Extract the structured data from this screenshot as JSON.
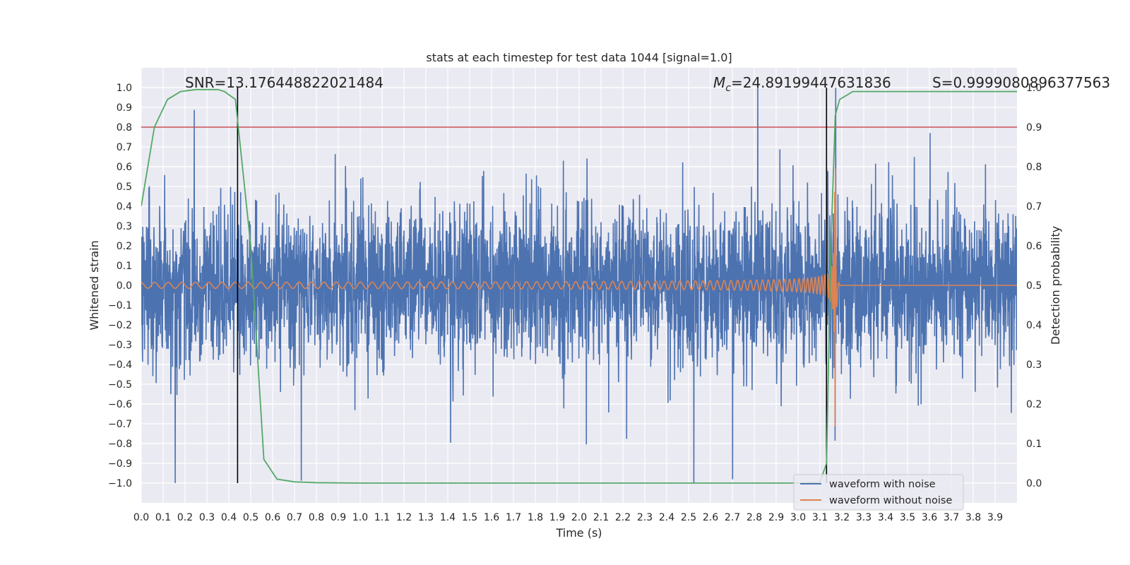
{
  "chart_data": {
    "type": "line",
    "title": "stats at each timestep for test data 1044 [signal=1.0]",
    "xlabel": "Time (s)",
    "ylabel": "Whitened strain",
    "y2label": "Detection probability",
    "xlim": [
      0.0,
      4.0
    ],
    "ylim": [
      -1.1,
      1.1
    ],
    "y2lim": [
      -0.05,
      1.05
    ],
    "x_ticks": [
      "0.0",
      "0.1",
      "0.2",
      "0.3",
      "0.4",
      "0.5",
      "0.6",
      "0.7",
      "0.8",
      "0.9",
      "1.0",
      "1.1",
      "1.2",
      "1.3",
      "1.4",
      "1.5",
      "1.6",
      "1.7",
      "1.8",
      "1.9",
      "2.0",
      "2.1",
      "2.2",
      "2.3",
      "2.4",
      "2.5",
      "2.6",
      "2.7",
      "2.8",
      "2.9",
      "3.0",
      "3.1",
      "3.2",
      "3.3",
      "3.4",
      "3.5",
      "3.6",
      "3.7",
      "3.8",
      "3.9"
    ],
    "y_ticks": [
      "1.0",
      "0.9",
      "0.8",
      "0.7",
      "0.6",
      "0.5",
      "0.4",
      "0.3",
      "0.2",
      "0.1",
      "0.0",
      "−0.1",
      "−0.2",
      "−0.3",
      "−0.4",
      "−0.5",
      "−0.6",
      "−0.7",
      "−0.8",
      "−0.9",
      "−1.0"
    ],
    "y2_ticks": [
      "1.0",
      "0.9",
      "0.8",
      "0.7",
      "0.6",
      "0.5",
      "0.4",
      "0.3",
      "0.2",
      "0.1",
      "0.0"
    ],
    "grid": true,
    "legend_location": "lower-right",
    "series": [
      {
        "name": "waveform with noise",
        "color": "#4c72b0",
        "axis": "left",
        "kind": "noise",
        "amplitude_std": 0.2,
        "range": [
          -1.0,
          1.0
        ]
      },
      {
        "name": "waveform without noise",
        "color": "#dd8452",
        "axis": "left",
        "kind": "chirp",
        "merger_time": 3.17,
        "amplitude_start": 0.015,
        "amplitude_peak": 0.72,
        "frequency_start_hz": 15,
        "frequency_peak_hz": 60
      },
      {
        "name": "detection probability",
        "color": "#55a868",
        "axis": "right",
        "show_in_legend": false,
        "x": [
          0.0,
          0.06,
          0.12,
          0.18,
          0.25,
          0.3,
          0.35,
          0.38,
          0.43,
          0.5,
          0.56,
          0.62,
          0.7,
          0.8,
          1.0,
          2.0,
          3.0,
          3.1,
          3.13,
          3.15,
          3.17,
          3.19,
          3.25,
          3.5,
          4.0
        ],
        "y": [
          0.7,
          0.9,
          0.97,
          0.99,
          0.995,
          0.995,
          0.995,
          0.99,
          0.97,
          0.6,
          0.06,
          0.01,
          0.003,
          0.001,
          0.0,
          0.0,
          0.0,
          0.002,
          0.05,
          0.6,
          0.93,
          0.97,
          0.99,
          0.99,
          0.99
        ]
      }
    ],
    "threshold": {
      "value": 0.9,
      "axis": "right",
      "color": "#c44e52"
    },
    "vertical_markers": [
      0.44,
      3.13
    ],
    "annotations": {
      "snr": "SNR=13.176448822021484",
      "mc_symbol": "M",
      "mc_subscript": "c",
      "mc_value": "=24.89199447631836",
      "s": "S=0.9999080896377563"
    }
  }
}
